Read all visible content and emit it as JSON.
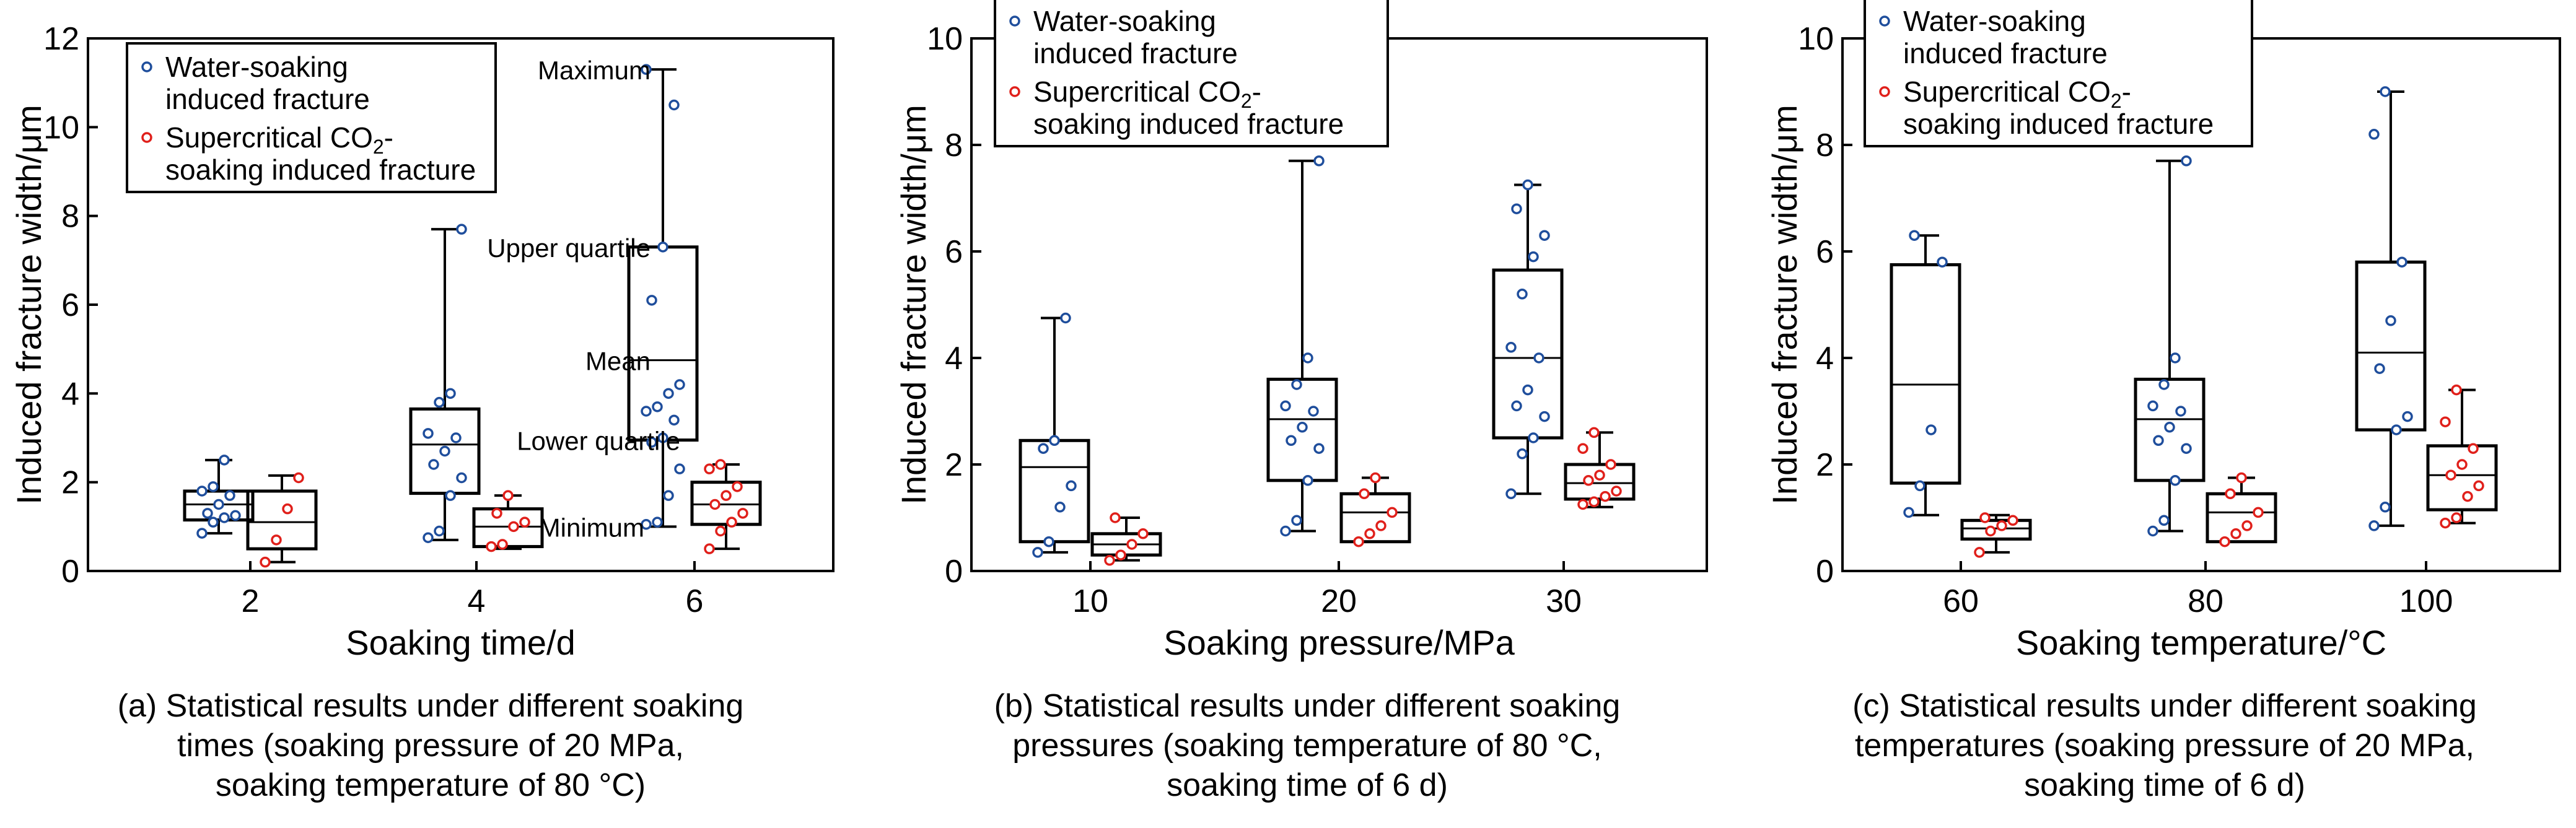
{
  "legend": {
    "water_line1": "Water-soaking",
    "water_line2": "induced fracture",
    "co2_line1": "Supercritical CO",
    "co2_sub": "2",
    "co2_dash": "-",
    "co2_line2": "soaking induced fracture"
  },
  "colors": {
    "water": "#1f4e9c",
    "co2": "#e0201b",
    "box": "#000000"
  },
  "annotations": {
    "maximum": "Maximum",
    "upper_quartile": "Upper quartile",
    "mean": "Mean",
    "lower_quartile": "Lower quartile",
    "minimum": "Minimum"
  },
  "captions": [
    {
      "line1": "(a) Statistical results under different soaking",
      "line2": "times (soaking pressure of 20 MPa,",
      "line3": "soaking temperature of 80 °C)"
    },
    {
      "line1": "(b) Statistical results under different soaking",
      "line2": "pressures (soaking temperature of 80 °C,",
      "line3": "soaking time of 6 d)"
    },
    {
      "line1": "(c) Statistical results under different soaking",
      "line2": "temperatures (soaking pressure of 20 MPa,",
      "line3": "soaking time of 6 d)"
    }
  ],
  "chart_data": [
    {
      "type": "box",
      "xlabel": "Soaking time/d",
      "ylabel": "Induced fracture width/μm",
      "ylim": [
        0,
        12
      ],
      "yticks": [
        "0",
        "2",
        "4",
        "6",
        "8",
        "10",
        "12"
      ],
      "categories": [
        "2",
        "4",
        "6"
      ],
      "series": [
        {
          "name": "Water-soaking induced fracture",
          "boxes": [
            {
              "min": 0.85,
              "q1": 1.15,
              "median": 1.5,
              "q3": 1.8,
              "max": 2.5,
              "points": [
                0.85,
                1.1,
                1.2,
                1.25,
                1.3,
                1.5,
                1.7,
                1.8,
                1.9,
                2.5
              ]
            },
            {
              "min": 0.7,
              "q1": 1.75,
              "median": 2.85,
              "q3": 3.65,
              "max": 7.7,
              "points": [
                0.75,
                0.9,
                1.7,
                2.1,
                2.4,
                2.7,
                3.0,
                3.1,
                3.8,
                4.0,
                7.7
              ]
            },
            {
              "min": 1.0,
              "q1": 2.95,
              "median": 4.75,
              "q3": 7.3,
              "max": 11.3,
              "points": [
                1.05,
                1.1,
                1.7,
                2.3,
                2.9,
                3.0,
                3.4,
                3.6,
                3.7,
                4.0,
                4.2,
                6.1,
                7.3,
                10.5,
                11.3
              ]
            }
          ]
        },
        {
          "name": "Supercritical CO2-soaking induced fracture",
          "boxes": [
            {
              "min": 0.2,
              "q1": 0.5,
              "median": 1.1,
              "q3": 1.8,
              "max": 2.15,
              "points": [
                0.2,
                0.7,
                1.4,
                2.1
              ]
            },
            {
              "min": 0.5,
              "q1": 0.55,
              "median": 1.0,
              "q3": 1.4,
              "max": 1.7,
              "points": [
                0.55,
                0.6,
                1.0,
                1.1,
                1.3,
                1.7
              ]
            },
            {
              "min": 0.5,
              "q1": 1.05,
              "median": 1.5,
              "q3": 2.0,
              "max": 2.4,
              "points": [
                0.5,
                0.9,
                1.1,
                1.3,
                1.5,
                1.7,
                1.9,
                2.3,
                2.4
              ]
            }
          ]
        }
      ]
    },
    {
      "type": "box",
      "xlabel": "Soaking pressure/MPa",
      "ylabel": "Induced fracture width/μm",
      "ylim": [
        0,
        10
      ],
      "yticks": [
        "0",
        "2",
        "4",
        "6",
        "8",
        "10"
      ],
      "categories": [
        "10",
        "20",
        "30"
      ],
      "series": [
        {
          "name": "Water-soaking induced fracture",
          "boxes": [
            {
              "min": 0.35,
              "q1": 0.55,
              "median": 1.95,
              "q3": 2.45,
              "max": 4.75,
              "points": [
                0.35,
                0.55,
                1.2,
                1.6,
                2.3,
                2.45,
                4.75
              ]
            },
            {
              "min": 0.75,
              "q1": 1.7,
              "median": 2.85,
              "q3": 3.6,
              "max": 7.7,
              "points": [
                0.75,
                0.95,
                1.7,
                2.3,
                2.45,
                2.7,
                3.0,
                3.1,
                3.5,
                4.0,
                7.7
              ]
            },
            {
              "min": 1.45,
              "q1": 2.5,
              "median": 4.0,
              "q3": 5.65,
              "max": 7.25,
              "points": [
                1.45,
                2.2,
                2.5,
                2.9,
                3.1,
                3.4,
                4.0,
                4.2,
                5.2,
                5.9,
                6.3,
                6.8,
                7.25
              ]
            }
          ]
        },
        {
          "name": "Supercritical CO2-soaking induced fracture",
          "boxes": [
            {
              "min": 0.2,
              "q1": 0.3,
              "median": 0.5,
              "q3": 0.7,
              "max": 1.0,
              "points": [
                0.2,
                0.3,
                0.5,
                0.7,
                1.0
              ]
            },
            {
              "min": 0.55,
              "q1": 0.55,
              "median": 1.1,
              "q3": 1.45,
              "max": 1.75,
              "points": [
                0.55,
                0.7,
                0.85,
                1.1,
                1.45,
                1.75
              ]
            },
            {
              "min": 1.2,
              "q1": 1.35,
              "median": 1.65,
              "q3": 2.0,
              "max": 2.6,
              "points": [
                1.25,
                1.3,
                1.4,
                1.5,
                1.7,
                1.8,
                2.0,
                2.3,
                2.6
              ]
            }
          ]
        }
      ]
    },
    {
      "type": "box",
      "xlabel": "Soaking temperature/°C",
      "ylabel": "Induced fracture width/μm",
      "ylim": [
        0,
        10
      ],
      "yticks": [
        "0",
        "2",
        "4",
        "6",
        "8",
        "10"
      ],
      "categories": [
        "60",
        "80",
        "100"
      ],
      "series": [
        {
          "name": "Water-soaking induced fracture",
          "boxes": [
            {
              "min": 1.05,
              "q1": 1.65,
              "median": 3.5,
              "q3": 5.75,
              "max": 6.3,
              "points": [
                1.1,
                1.6,
                2.65,
                5.8,
                6.3
              ]
            },
            {
              "min": 0.75,
              "q1": 1.7,
              "median": 2.85,
              "q3": 3.6,
              "max": 7.7,
              "points": [
                0.75,
                0.95,
                1.7,
                2.3,
                2.45,
                2.7,
                3.0,
                3.1,
                3.5,
                4.0,
                7.7
              ]
            },
            {
              "min": 0.85,
              "q1": 2.65,
              "median": 4.1,
              "q3": 5.8,
              "max": 9.0,
              "points": [
                0.85,
                1.2,
                2.65,
                2.9,
                3.8,
                4.7,
                5.8,
                8.2,
                9.0
              ]
            }
          ]
        },
        {
          "name": "Supercritical CO2-soaking induced fracture",
          "boxes": [
            {
              "min": 0.35,
              "q1": 0.6,
              "median": 0.8,
              "q3": 0.95,
              "max": 1.05,
              "points": [
                0.35,
                0.75,
                0.85,
                0.95,
                1.0
              ]
            },
            {
              "min": 0.55,
              "q1": 0.55,
              "median": 1.1,
              "q3": 1.45,
              "max": 1.75,
              "points": [
                0.55,
                0.7,
                0.85,
                1.1,
                1.45,
                1.75
              ]
            },
            {
              "min": 0.9,
              "q1": 1.15,
              "median": 1.8,
              "q3": 2.35,
              "max": 3.4,
              "points": [
                0.9,
                1.0,
                1.4,
                1.6,
                1.8,
                2.0,
                2.3,
                2.8,
                3.4
              ]
            }
          ]
        }
      ]
    }
  ]
}
